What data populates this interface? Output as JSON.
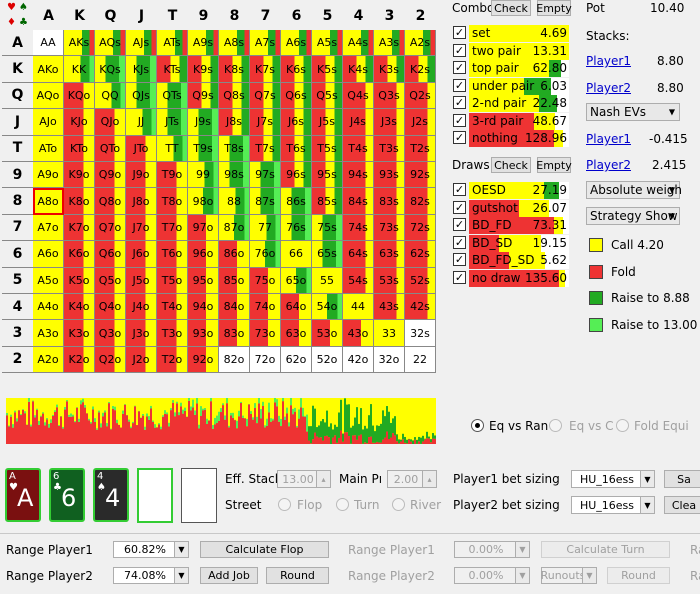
{
  "grid": {
    "rank_headers": [
      "A",
      "K",
      "Q",
      "J",
      "T",
      "9",
      "8",
      "7",
      "6",
      "5",
      "4",
      "3",
      "2"
    ],
    "cells": [
      [
        "AA",
        "AKs",
        "AQs",
        "AJs",
        "ATs",
        "A9s",
        "A8s",
        "A7s",
        "A6s",
        "A5s",
        "A4s",
        "A3s",
        "A2s"
      ],
      [
        "AKo",
        "KK",
        "KQs",
        "KJs",
        "KTs",
        "K9s",
        "K8s",
        "K7s",
        "K6s",
        "K5s",
        "K4s",
        "K3s",
        "K2s"
      ],
      [
        "AQo",
        "KQo",
        "QQ",
        "QJs",
        "QTs",
        "Q9s",
        "Q8s",
        "Q7s",
        "Q6s",
        "Q5s",
        "Q4s",
        "Q3s",
        "Q2s"
      ],
      [
        "AJo",
        "KJo",
        "QJo",
        "JJ",
        "JTs",
        "J9s",
        "J8s",
        "J7s",
        "J6s",
        "J5s",
        "J4s",
        "J3s",
        "J2s"
      ],
      [
        "ATo",
        "KTo",
        "QTo",
        "JTo",
        "TT",
        "T9s",
        "T8s",
        "T7s",
        "T6s",
        "T5s",
        "T4s",
        "T3s",
        "T2s"
      ],
      [
        "A9o",
        "K9o",
        "Q9o",
        "J9o",
        "T9o",
        "99",
        "98s",
        "97s",
        "96s",
        "95s",
        "94s",
        "93s",
        "92s"
      ],
      [
        "A8o",
        "K8o",
        "Q8o",
        "J8o",
        "T8o",
        "98o",
        "88",
        "87s",
        "86s",
        "85s",
        "84s",
        "83s",
        "82s"
      ],
      [
        "A7o",
        "K7o",
        "Q7o",
        "J7o",
        "T7o",
        "97o",
        "87o",
        "77",
        "76s",
        "75s",
        "74s",
        "73s",
        "72s"
      ],
      [
        "A6o",
        "K6o",
        "Q6o",
        "J6o",
        "T6o",
        "96o",
        "86o",
        "76o",
        "66",
        "65s",
        "64s",
        "63s",
        "62s"
      ],
      [
        "A5o",
        "K5o",
        "Q5o",
        "J5o",
        "T5o",
        "95o",
        "85o",
        "75o",
        "65o",
        "55",
        "54s",
        "53s",
        "52s"
      ],
      [
        "A4o",
        "K4o",
        "Q4o",
        "J4o",
        "T4o",
        "94o",
        "84o",
        "74o",
        "64o",
        "54o",
        "44",
        "43s",
        "42s"
      ],
      [
        "A3o",
        "K3o",
        "Q3o",
        "J3o",
        "T3o",
        "93o",
        "83o",
        "73o",
        "63o",
        "53o",
        "43o",
        "33",
        "32s"
      ],
      [
        "A2o",
        "K2o",
        "Q2o",
        "J2o",
        "T2o",
        "92o",
        "82o",
        "72o",
        "62o",
        "52o",
        "42o",
        "32o",
        "22"
      ]
    ]
  },
  "combo": {
    "label": "Combo",
    "check_label": "Check",
    "empty_label": "Empty"
  },
  "pot": {
    "label": "Pot",
    "value": "10.40"
  },
  "made_hands": [
    {
      "name": "set",
      "value": "4.69"
    },
    {
      "name": "two pair",
      "value": "13.31"
    },
    {
      "name": "top pair",
      "value": "62.80"
    },
    {
      "name": "under pair",
      "value": "6.03"
    },
    {
      "name": "2-nd pair",
      "value": "22.48"
    },
    {
      "name": "3-rd pair",
      "value": "48.67"
    },
    {
      "name": "nothing",
      "value": "128.96"
    }
  ],
  "draws": {
    "label": "Draws",
    "check_label": "Check",
    "empty_label": "Empty"
  },
  "draw_hands": [
    {
      "name": "OESD",
      "value": "27.19"
    },
    {
      "name": "gutshot",
      "value": "26.07"
    },
    {
      "name": "BD_FD",
      "value": "73.31"
    },
    {
      "name": "BD_SD",
      "value": "19.15"
    },
    {
      "name": "BD_FD_SD",
      "value": "5.62"
    },
    {
      "name": "no draw",
      "value": "135.60"
    }
  ],
  "stacks": {
    "label": "Stacks:",
    "p1_name": "Player1",
    "p1_value": "8.80",
    "p2_name": "Player2",
    "p2_value": "8.80"
  },
  "evs": {
    "dropdown": "Nash EVs",
    "p1_name": "Player1",
    "p1_value": "-0.415",
    "p2_name": "Player2",
    "p2_value": "2.415"
  },
  "weight_dropdown": "Absolute weigh",
  "strategy_dropdown": "Strategy Show",
  "legend": [
    {
      "label": "Call 4.20",
      "color": "#ffff00"
    },
    {
      "label": "Fold",
      "color": "#ee3333"
    },
    {
      "label": "Raise to 8.88",
      "color": "#22aa22"
    },
    {
      "label": "Raise to 13.00",
      "color": "#55ee55"
    }
  ],
  "eq_radios": [
    {
      "label": "Eq vs Ran"
    },
    {
      "label": "Eq vs C"
    },
    {
      "label": "Fold Equi"
    }
  ],
  "board_cards": [
    {
      "rank": "A",
      "suit": "♥",
      "color": "#7a1010"
    },
    {
      "rank": "6",
      "suit": "♣",
      "color": "#106020"
    },
    {
      "rank": "4",
      "suit": "♠",
      "color": "#2a2a2a"
    }
  ],
  "eff_stack": {
    "label": "Eff. Stacl",
    "value": "13.00"
  },
  "main_pot": {
    "label": "Main Pı",
    "value": "2.00"
  },
  "street": {
    "label": "Street",
    "options": [
      "Flop",
      "Turn",
      "River"
    ]
  },
  "bet_sizing": [
    {
      "label": "Player1 bet sizing",
      "value": "HU_16ess",
      "btn": "Sa"
    },
    {
      "label": "Player2 bet sizing",
      "value": "HU_16ess",
      "btn": "Clea"
    }
  ],
  "bottom": {
    "range_p1_label": "Range Player1",
    "range_p1_value": "60.82%",
    "range_p2_label": "Range Player2",
    "range_p2_value": "74.08%",
    "calc_flop": "Calculate Flop",
    "add_job": "Add Job",
    "round": "Round",
    "range_p1_label_b": "Range Player1",
    "range_p1_value_b": "0.00%",
    "range_p2_label_b": "Range Player2",
    "range_p2_value_b": "0.00%",
    "calc_turn": "Calculate Turn",
    "runouts": "Runouts",
    "round_b": "Round",
    "edge_a": "Ra",
    "edge_b": "Ra"
  },
  "suit_corner": [
    "♥",
    "♠",
    "♦",
    "♣"
  ]
}
